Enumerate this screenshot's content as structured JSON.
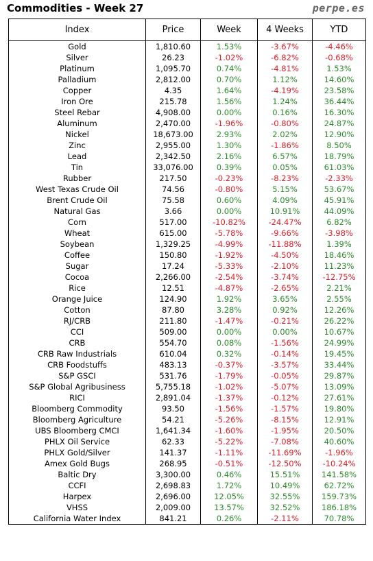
{
  "header": {
    "title": "Commodities - Week 27",
    "brand": "perpe.es"
  },
  "columns": [
    "Index",
    "Price",
    "Week",
    "4 Weeks",
    "YTD"
  ],
  "rows": [
    [
      "Gold",
      "1,810.60",
      "1.53%",
      "-3.67%",
      "-4.46%"
    ],
    [
      "Silver",
      "26.23",
      "-1.02%",
      "-6.82%",
      "-0.68%"
    ],
    [
      "Platinum",
      "1,095.70",
      "0.74%",
      "-4.81%",
      "1.53%"
    ],
    [
      "Palladium",
      "2,812.00",
      "0.70%",
      "1.12%",
      "14.60%"
    ],
    [
      "Copper",
      "4.35",
      "1.64%",
      "-4.19%",
      "23.58%"
    ],
    [
      "Iron Ore",
      "215.78",
      "1.56%",
      "1.24%",
      "36.44%"
    ],
    [
      "Steel Rebar",
      "4,908.00",
      "0.00%",
      "0.16%",
      "16.30%"
    ],
    [
      "Aluminum",
      "2,470.00",
      "-1.96%",
      "-0.80%",
      "24.87%"
    ],
    [
      "Nickel",
      "18,673.00",
      "2.93%",
      "2.02%",
      "12.90%"
    ],
    [
      "Zinc",
      "2,955.00",
      "1.30%",
      "-1.86%",
      "8.50%"
    ],
    [
      "Lead",
      "2,342.50",
      "2.16%",
      "6.57%",
      "18.79%"
    ],
    [
      "Tin",
      "33,076.00",
      "0.39%",
      "0.05%",
      "61.03%"
    ],
    [
      "Rubber",
      "217.50",
      "-0.23%",
      "-8.23%",
      "-2.33%"
    ],
    [
      "West Texas Crude Oil",
      "74.56",
      "-0.80%",
      "5.15%",
      "53.67%"
    ],
    [
      "Brent Crude Oil",
      "75.58",
      "0.60%",
      "4.09%",
      "45.91%"
    ],
    [
      "Natural Gas",
      "3.66",
      "0.00%",
      "10.91%",
      "44.09%"
    ],
    [
      "Corn",
      "517.00",
      "-10.82%",
      "-24.47%",
      "6.82%"
    ],
    [
      "Wheat",
      "615.00",
      "-5.78%",
      "-9.66%",
      "-3.98%"
    ],
    [
      "Soybean",
      "1,329.25",
      "-4.99%",
      "-11.88%",
      "1.39%"
    ],
    [
      "Coffee",
      "150.80",
      "-1.92%",
      "-4.50%",
      "18.46%"
    ],
    [
      "Sugar",
      "17.24",
      "-5.33%",
      "-2.10%",
      "11.23%"
    ],
    [
      "Cocoa",
      "2,266.00",
      "-2.54%",
      "-3.74%",
      "-12.75%"
    ],
    [
      "Rice",
      "12.51",
      "-4.87%",
      "-2.65%",
      "2.21%"
    ],
    [
      "Orange Juice",
      "124.90",
      "1.92%",
      "3.65%",
      "2.55%"
    ],
    [
      "Cotton",
      "87.80",
      "3.28%",
      "0.92%",
      "12.26%"
    ],
    [
      "RJ/CRB",
      "211.80",
      "-1.47%",
      "-0.21%",
      "26.22%"
    ],
    [
      "CCI",
      "509.00",
      "0.00%",
      "0.00%",
      "10.67%"
    ],
    [
      "CRB",
      "554.70",
      "0.08%",
      "-1.56%",
      "24.99%"
    ],
    [
      "CRB Raw Industrials",
      "610.04",
      "0.32%",
      "-0.14%",
      "19.45%"
    ],
    [
      "CRB Foodstuffs",
      "483.13",
      "-0.37%",
      "-3.57%",
      "33.44%"
    ],
    [
      "S&P GSCI",
      "531.76",
      "-1.79%",
      "-0.05%",
      "29.87%"
    ],
    [
      "S&P Global Agribusiness",
      "5,755.18",
      "-1.02%",
      "-5.07%",
      "13.09%"
    ],
    [
      "RICI",
      "2,891.04",
      "-1.37%",
      "-0.12%",
      "27.61%"
    ],
    [
      "Bloomberg Commodity",
      "93.50",
      "-1.56%",
      "-1.57%",
      "19.80%"
    ],
    [
      "Bloomberg Agriculture",
      "54.21",
      "-5.26%",
      "-8.15%",
      "12.91%"
    ],
    [
      "UBS Bloomberg CMCI",
      "1,641.34",
      "-1.60%",
      "-1.95%",
      "20.50%"
    ],
    [
      "PHLX Oil Service",
      "62.33",
      "-5.22%",
      "-7.08%",
      "40.60%"
    ],
    [
      "PHLX Gold/Silver",
      "141.37",
      "-1.11%",
      "-11.69%",
      "-1.96%"
    ],
    [
      "Amex Gold Bugs",
      "268.95",
      "-0.51%",
      "-12.50%",
      "-10.24%"
    ],
    [
      "Baltic Dry",
      "3,300.00",
      "0.46%",
      "15.51%",
      "141.58%"
    ],
    [
      "CCFI",
      "2,698.83",
      "1.72%",
      "10.49%",
      "62.72%"
    ],
    [
      "Harpex",
      "2,696.00",
      "12.05%",
      "32.55%",
      "159.73%"
    ],
    [
      "VHSS",
      "2,009.00",
      "13.57%",
      "32.52%",
      "186.18%"
    ],
    [
      "California Water Index",
      "841.21",
      "0.26%",
      "-2.11%",
      "70.78%"
    ]
  ],
  "colors": {
    "positive": "#2e8b2e",
    "negative": "#e0202a"
  }
}
